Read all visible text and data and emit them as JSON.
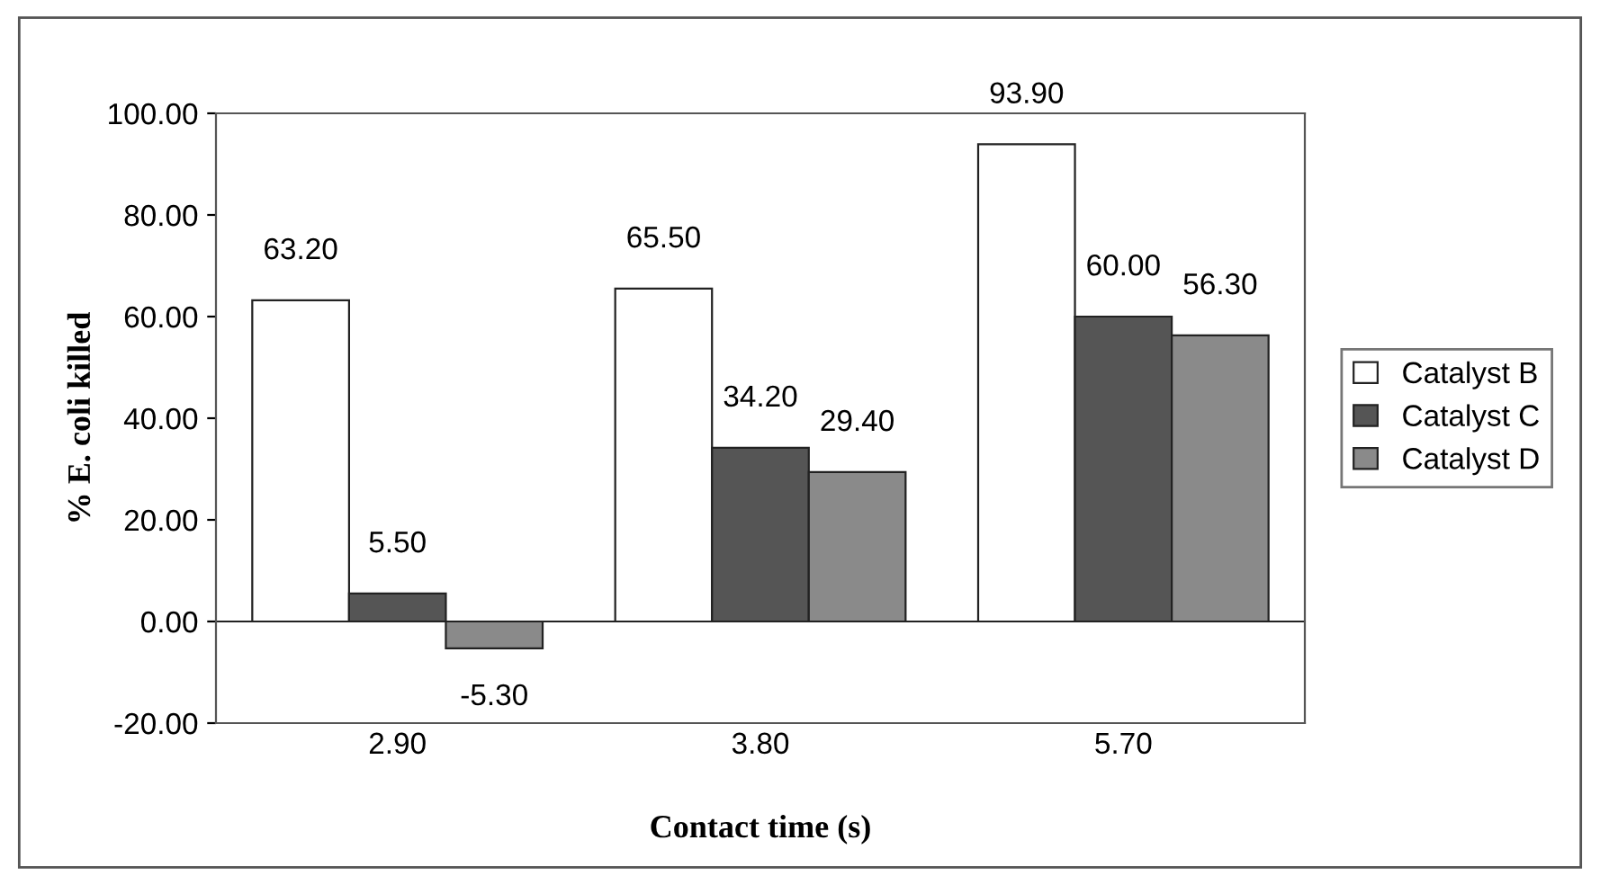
{
  "chart_data": {
    "type": "bar",
    "xlabel": "Contact time (s)",
    "ylabel": "% E. coli killed",
    "categories": [
      "2.90",
      "3.80",
      "5.70"
    ],
    "series": [
      {
        "name": "Catalyst B",
        "color": "#ffffff",
        "values": [
          63.2,
          65.5,
          93.9
        ],
        "value_labels": [
          "63.20",
          "65.50",
          "93.90"
        ]
      },
      {
        "name": "Catalyst C",
        "color": "#555555",
        "values": [
          5.5,
          34.2,
          60.0
        ],
        "value_labels": [
          "5.50",
          "34.20",
          "60.00"
        ]
      },
      {
        "name": "Catalyst D",
        "color": "#8a8a8a",
        "values": [
          -5.3,
          29.4,
          56.3
        ],
        "value_labels": [
          "-5.30",
          "29.40",
          "56.30"
        ]
      }
    ],
    "ylim": [
      -20,
      100
    ],
    "yticks": [
      {
        "value": -20,
        "label": "-20.00"
      },
      {
        "value": 0,
        "label": "0.00"
      },
      {
        "value": 20,
        "label": "20.00"
      },
      {
        "value": 40,
        "label": "40.00"
      },
      {
        "value": 60,
        "label": "60.00"
      },
      {
        "value": 80,
        "label": "80.00"
      },
      {
        "value": 100,
        "label": "100.00"
      }
    ],
    "legend": "right"
  }
}
